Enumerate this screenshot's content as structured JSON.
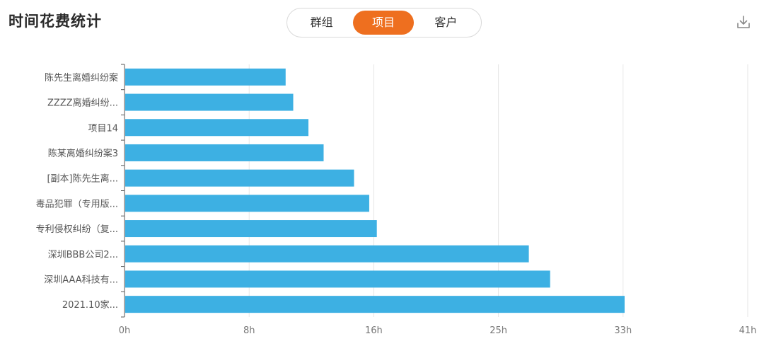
{
  "title": "时间花费统计",
  "tabs": [
    {
      "label": "群组",
      "active": false
    },
    {
      "label": "项目",
      "active": true
    },
    {
      "label": "客户",
      "active": false
    }
  ],
  "colors": {
    "accent": "#ee6f1f",
    "bar": "#3db0e3",
    "grid": "#e6e6e6"
  },
  "download_icon": "download-icon",
  "chart_data": {
    "type": "bar",
    "orientation": "horizontal",
    "categories": [
      "陈先生离婚纠纷案",
      "ZZZZ离婚纠纷...",
      "项目14",
      "陈某离婚纠纷案3",
      "[副本]陈先生离...",
      "毒品犯罪（专用版...",
      "专利侵权纠纷（复...",
      "深圳BBB公司2...",
      "深圳AAA科技有...",
      "2021.10家..."
    ],
    "values": [
      10.6,
      11.1,
      12.1,
      13.1,
      15.1,
      16.1,
      16.6,
      26.6,
      28.0,
      32.9
    ],
    "unit": "h",
    "xticks": [
      "0h",
      "8h",
      "16h",
      "25h",
      "33h",
      "41h"
    ],
    "xlim": [
      0,
      41
    ],
    "grid": true,
    "legend": "none"
  }
}
